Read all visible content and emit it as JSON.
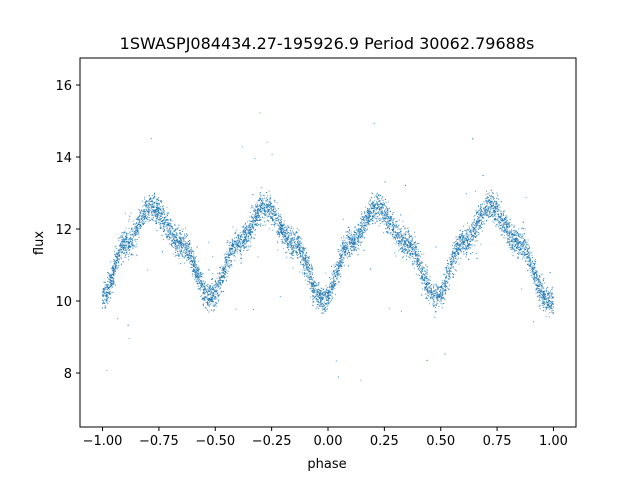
{
  "chart_data": {
    "type": "scatter",
    "title": "1SWASPJ084434.27-195926.9 Period 30062.79688s",
    "xlabel": "phase",
    "ylabel": "flux",
    "xlim": [
      -1.1,
      1.1
    ],
    "ylim": [
      6.5,
      16.75
    ],
    "x_ticks": [
      -1.0,
      -0.75,
      -0.5,
      -0.25,
      0.0,
      0.25,
      0.5,
      0.75,
      1.0
    ],
    "x_tick_labels": [
      "−1.00",
      "−0.75",
      "−0.50",
      "−0.25",
      "0.00",
      "0.25",
      "0.50",
      "0.75",
      "1.00"
    ],
    "y_ticks": [
      8,
      10,
      12,
      14,
      16
    ],
    "y_tick_labels": [
      "8",
      "10",
      "12",
      "14",
      "16"
    ],
    "grid": false,
    "legend": "none",
    "marker_color": "#1f77b4",
    "series": [
      {
        "x_range": [
          -1.0,
          1.0
        ],
        "points_approx": 9000,
        "curve": [
          {
            "x": -1.0,
            "y": 10.1
          },
          {
            "x": -0.9,
            "y": 11.6
          },
          {
            "x": -0.78,
            "y": 12.6
          },
          {
            "x": -0.65,
            "y": 11.6
          },
          {
            "x": -0.52,
            "y": 10.1
          },
          {
            "x": -0.4,
            "y": 11.6
          },
          {
            "x": -0.28,
            "y": 12.6
          },
          {
            "x": -0.15,
            "y": 11.6
          },
          {
            "x": -0.02,
            "y": 10.0
          },
          {
            "x": 0.1,
            "y": 11.6
          },
          {
            "x": 0.22,
            "y": 12.6
          },
          {
            "x": 0.35,
            "y": 11.6
          },
          {
            "x": 0.48,
            "y": 10.1
          },
          {
            "x": 0.6,
            "y": 11.6
          },
          {
            "x": 0.72,
            "y": 12.6
          },
          {
            "x": 0.85,
            "y": 11.6
          },
          {
            "x": 0.98,
            "y": 10.0
          }
        ],
        "scatter_spread": 0.35,
        "outlier_range": [
          7.0,
          16.3
        ]
      }
    ]
  }
}
